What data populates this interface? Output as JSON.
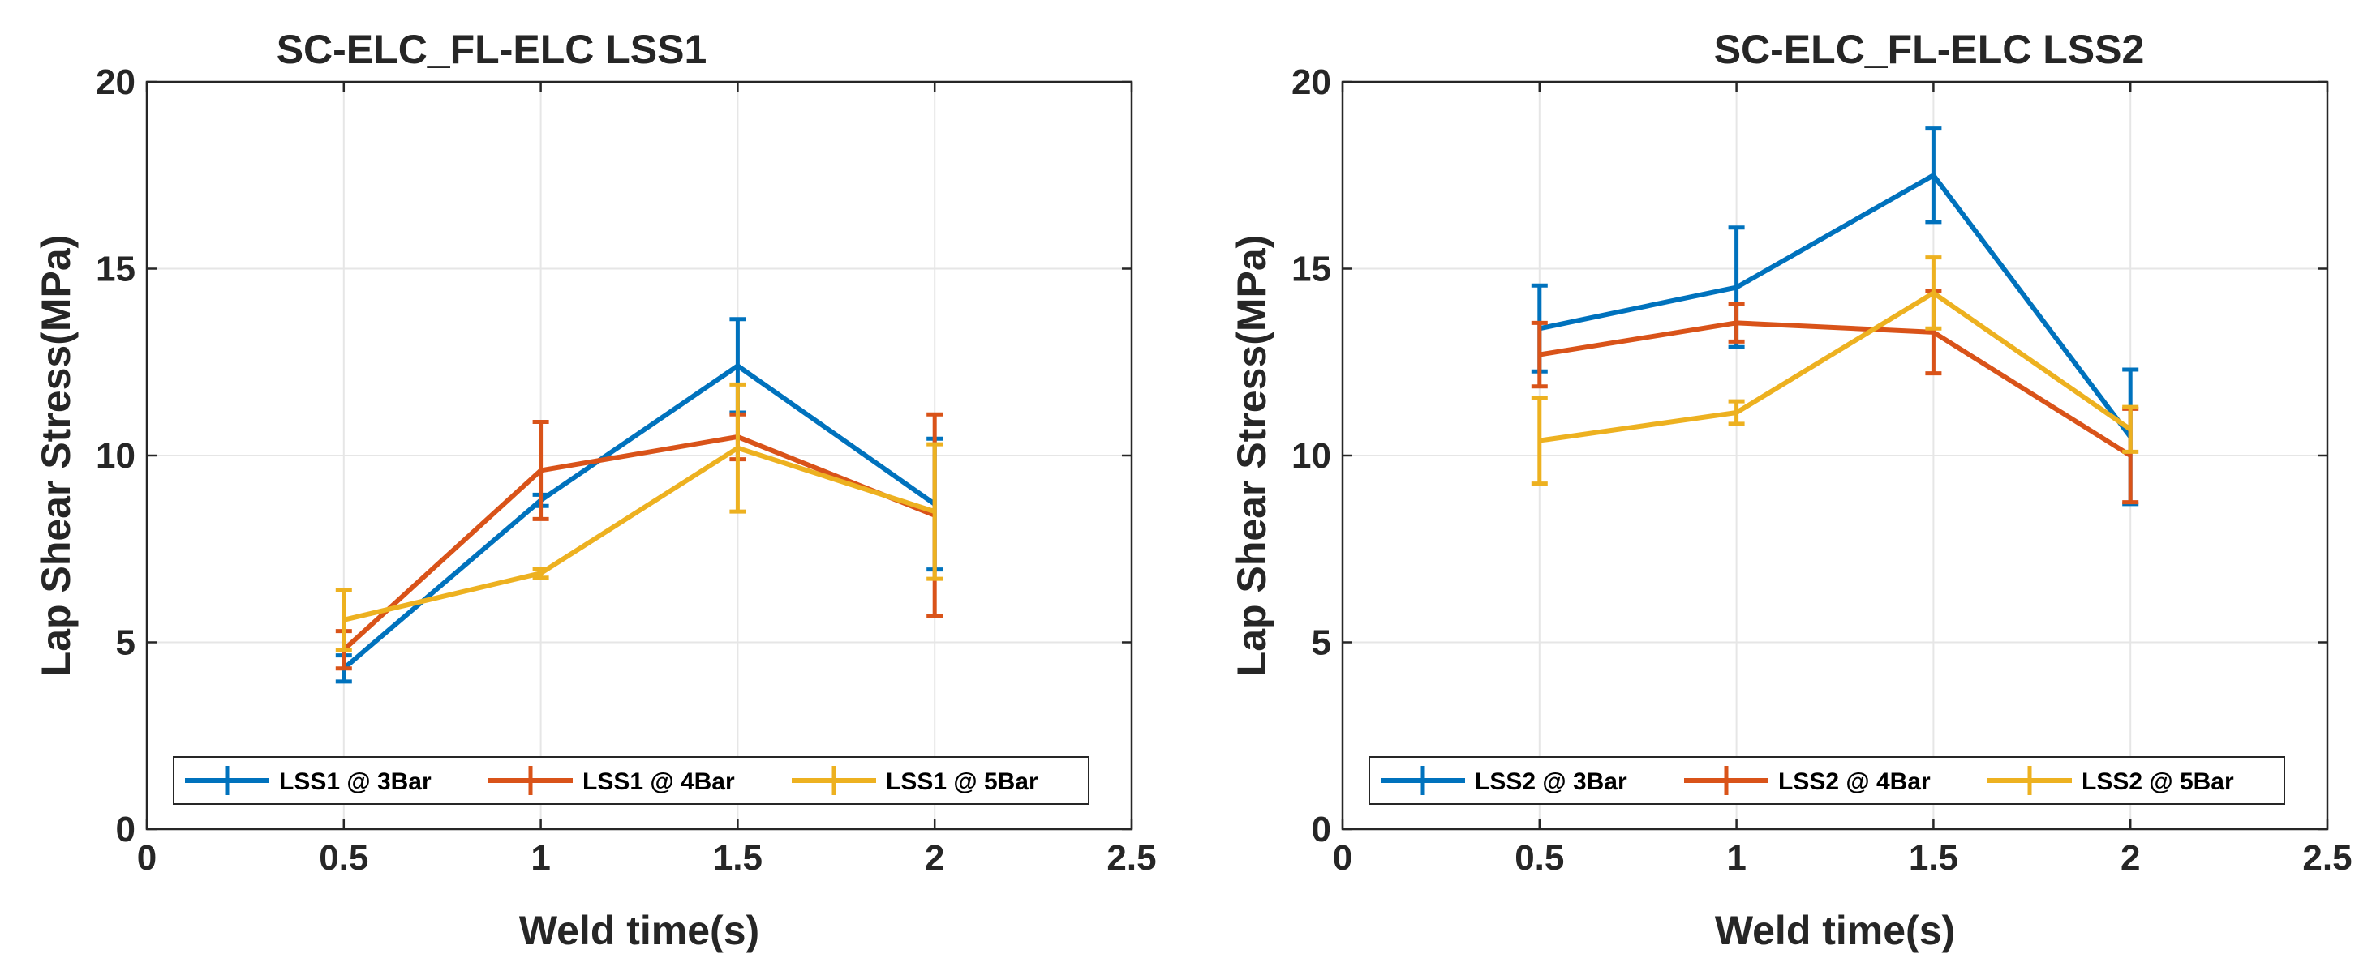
{
  "chart_data": [
    {
      "type": "line",
      "title": "SC-ELC_FL-ELC LSS1",
      "xlabel": "Weld time(s)",
      "ylabel": "Lap Shear Stress(MPa)",
      "xlim": [
        0,
        2.5
      ],
      "ylim": [
        0,
        20
      ],
      "xticks": [
        0,
        0.5,
        1,
        1.5,
        2,
        2.5
      ],
      "xtick_labels": [
        "0",
        "0.5",
        "1",
        "1.5",
        "2",
        "2.5"
      ],
      "yticks": [
        0,
        5,
        10,
        15,
        20
      ],
      "ytick_labels": [
        "0",
        "5",
        "10",
        "15",
        "20"
      ],
      "grid": true,
      "legend_position": "bottom",
      "x": [
        0.5,
        1,
        1.5,
        2
      ],
      "series": [
        {
          "name": "LSS1 @ 3Bar",
          "color": "#0072BD",
          "values": [
            4.3,
            8.8,
            12.4,
            8.7
          ],
          "errors": [
            0.35,
            0.15,
            1.25,
            1.75
          ]
        },
        {
          "name": "LSS1 @ 4Bar",
          "color": "#D95319",
          "values": [
            4.8,
            9.6,
            10.5,
            8.4
          ],
          "errors": [
            0.5,
            1.3,
            0.6,
            2.7
          ]
        },
        {
          "name": "LSS1 @ 5Bar",
          "color": "#EDB120",
          "values": [
            5.6,
            6.85,
            10.2,
            8.5
          ],
          "errors": [
            0.8,
            0.12,
            1.7,
            1.8
          ]
        }
      ]
    },
    {
      "type": "line",
      "title": "SC-ELC_FL-ELC LSS2",
      "xlabel": "Weld time(s)",
      "ylabel": "Lap Shear Stress(MPa)",
      "xlim": [
        0,
        2.5
      ],
      "ylim": [
        0,
        20
      ],
      "xticks": [
        0,
        0.5,
        1,
        1.5,
        2,
        2.5
      ],
      "xtick_labels": [
        "0",
        "0.5",
        "1",
        "1.5",
        "2",
        "2.5"
      ],
      "yticks": [
        0,
        5,
        10,
        15,
        20
      ],
      "ytick_labels": [
        "0",
        "5",
        "10",
        "15",
        "20"
      ],
      "grid": true,
      "legend_position": "bottom",
      "x": [
        0.5,
        1,
        1.5,
        2
      ],
      "series": [
        {
          "name": "LSS2 @ 3Bar",
          "color": "#0072BD",
          "values": [
            13.4,
            14.5,
            17.5,
            10.5
          ],
          "errors": [
            1.15,
            1.6,
            1.25,
            1.8
          ]
        },
        {
          "name": "LSS2 @ 4Bar",
          "color": "#D95319",
          "values": [
            12.7,
            13.55,
            13.3,
            10.0
          ],
          "errors": [
            0.85,
            0.5,
            1.1,
            1.25
          ]
        },
        {
          "name": "LSS2 @ 5Bar",
          "color": "#EDB120",
          "values": [
            10.4,
            11.15,
            14.35,
            10.7
          ],
          "errors": [
            1.15,
            0.3,
            0.95,
            0.6
          ]
        }
      ]
    }
  ]
}
